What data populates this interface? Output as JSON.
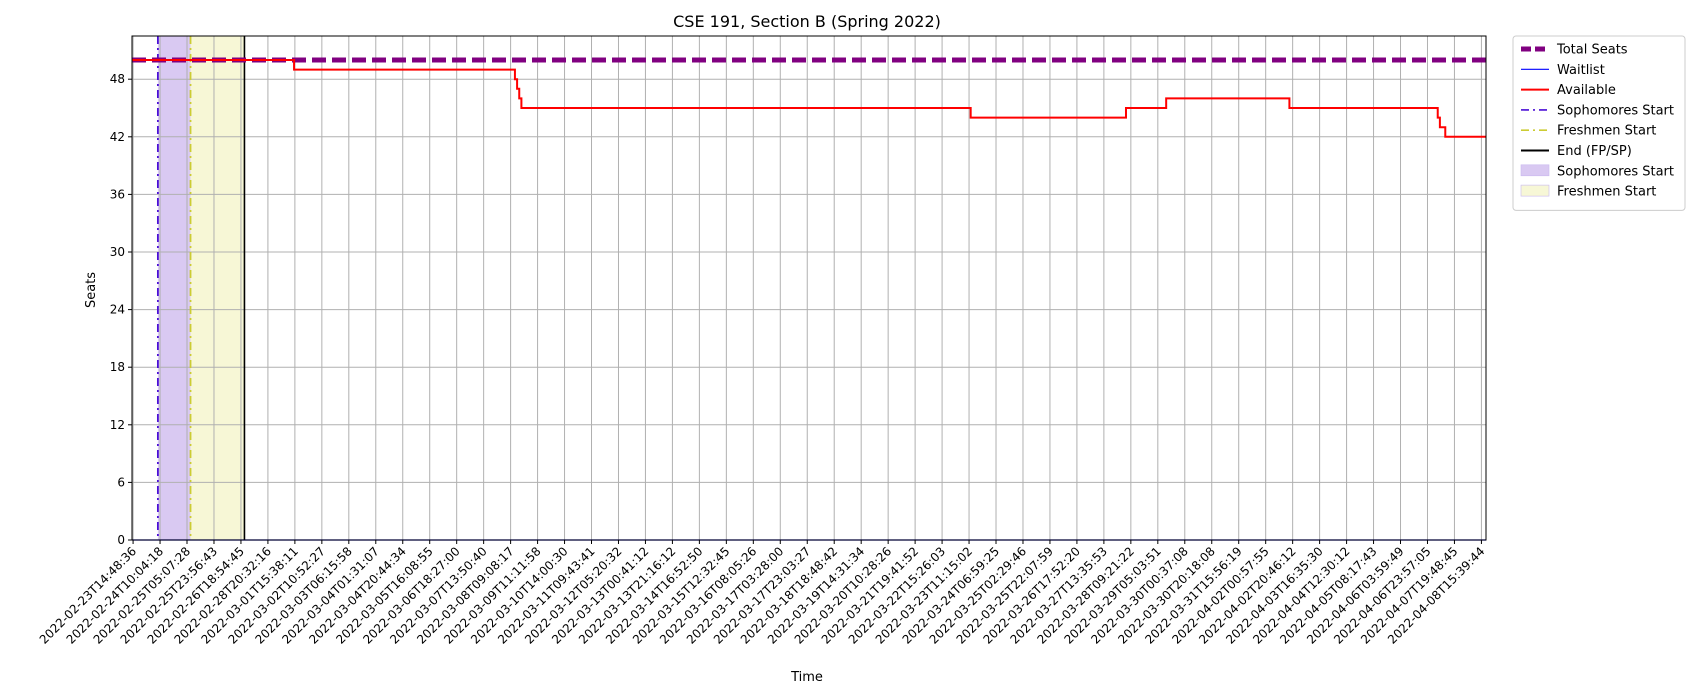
{
  "chart_data": {
    "type": "line",
    "title": "CSE 191, Section B (Spring 2022)",
    "xlabel": "Time",
    "ylabel": "Seats",
    "ylim": [
      0,
      52.5
    ],
    "y_ticks": [
      0,
      6,
      12,
      18,
      24,
      30,
      36,
      42,
      48
    ],
    "x_ticks": [
      "2022-02-23T14:48:36",
      "2022-02-24T10:04:18",
      "2022-02-25T05:07:28",
      "2022-02-25T23:56:43",
      "2022-02-26T18:54:45",
      "2022-02-28T20:32:16",
      "2022-03-01T15:38:11",
      "2022-03-02T10:52:27",
      "2022-03-03T06:15:58",
      "2022-03-04T01:31:07",
      "2022-03-04T20:44:34",
      "2022-03-05T16:08:55",
      "2022-03-06T18:27:00",
      "2022-03-07T13:50:40",
      "2022-03-08T09:08:17",
      "2022-03-09T11:11:58",
      "2022-03-10T14:00:30",
      "2022-03-11T09:43:41",
      "2022-03-12T05:20:32",
      "2022-03-13T00:41:12",
      "2022-03-13T21:16:12",
      "2022-03-14T16:52:50",
      "2022-03-15T12:32:45",
      "2022-03-16T08:05:26",
      "2022-03-17T03:28:00",
      "2022-03-17T23:03:27",
      "2022-03-18T18:48:42",
      "2022-03-19T14:31:34",
      "2022-03-20T10:28:26",
      "2022-03-21T19:41:52",
      "2022-03-22T15:26:03",
      "2022-03-23T11:15:02",
      "2022-03-24T06:59:25",
      "2022-03-25T02:29:46",
      "2022-03-25T22:07:59",
      "2022-03-26T17:52:20",
      "2022-03-27T13:35:53",
      "2022-03-28T09:21:22",
      "2022-03-29T05:03:51",
      "2022-03-30T00:37:08",
      "2022-03-30T20:18:08",
      "2022-03-31T15:56:19",
      "2022-04-02T00:57:55",
      "2022-04-02T20:46:12",
      "2022-04-03T16:35:30",
      "2022-04-04T12:30:12",
      "2022-04-05T08:17:43",
      "2022-04-06T03:59:49",
      "2022-04-06T23:57:05",
      "2022-04-07T19:48:45",
      "2022-04-08T15:39:44"
    ],
    "x_range_ticks": [
      -0.04,
      50.17
    ],
    "series": [
      {
        "name": "Total Seats",
        "color": "#800080",
        "style": "dashed-thick",
        "points": [
          [
            -0.04,
            50
          ],
          [
            50.17,
            50
          ]
        ]
      },
      {
        "name": "Waitlist",
        "color": "#0000ff",
        "style": "solid-thin",
        "points": [
          [
            -0.04,
            0
          ],
          [
            50.17,
            0
          ]
        ]
      },
      {
        "name": "Available",
        "color": "#ff0000",
        "style": "solid",
        "step": true,
        "points": [
          [
            -0.04,
            50
          ],
          [
            5.97,
            50
          ],
          [
            5.97,
            49
          ],
          [
            14.16,
            49
          ],
          [
            14.16,
            48
          ],
          [
            14.24,
            48
          ],
          [
            14.24,
            47
          ],
          [
            14.32,
            47
          ],
          [
            14.32,
            46
          ],
          [
            14.4,
            46
          ],
          [
            14.4,
            45
          ],
          [
            31.06,
            45
          ],
          [
            31.06,
            44
          ],
          [
            36.82,
            44
          ],
          [
            36.82,
            45
          ],
          [
            38.31,
            45
          ],
          [
            38.31,
            46
          ],
          [
            42.88,
            46
          ],
          [
            42.88,
            45
          ],
          [
            48.38,
            45
          ],
          [
            48.38,
            44
          ],
          [
            48.46,
            44
          ],
          [
            48.46,
            43
          ],
          [
            48.66,
            43
          ],
          [
            48.66,
            42
          ],
          [
            50.17,
            42
          ]
        ]
      }
    ],
    "vertical_lines": [
      {
        "name": "Sophomores Start",
        "x": 0.92,
        "color": "#4b0fd6",
        "style": "dashdot"
      },
      {
        "name": "Freshmen Start",
        "x": 2.13,
        "color": "#cccc33",
        "style": "dashdot"
      },
      {
        "name": "End (FP/SP)",
        "x": 4.13,
        "color": "#000000",
        "style": "solid"
      }
    ],
    "spans": [
      {
        "name": "Sophomores Start",
        "x0": 0.92,
        "x1": 2.13,
        "color": "#d9c9f2"
      },
      {
        "name": "Freshmen Start",
        "x0": 2.13,
        "x1": 4.13,
        "color": "#f7f7d6"
      }
    ],
    "grid": true,
    "legend": {
      "placement": "outside-top-right",
      "entries": [
        {
          "label": "Total Seats",
          "kind": "line",
          "color": "#800080",
          "style": "dashed-thick"
        },
        {
          "label": "Waitlist",
          "kind": "line",
          "color": "#0000ff",
          "style": "solid-thin"
        },
        {
          "label": "Available",
          "kind": "line",
          "color": "#ff0000",
          "style": "solid"
        },
        {
          "label": "Sophomores Start",
          "kind": "line",
          "color": "#4b0fd6",
          "style": "dashdot"
        },
        {
          "label": "Freshmen Start",
          "kind": "line",
          "color": "#cccc33",
          "style": "dashdot"
        },
        {
          "label": "End (FP/SP)",
          "kind": "line",
          "color": "#000000",
          "style": "solid"
        },
        {
          "label": "Sophomores Start",
          "kind": "patch",
          "color": "#d9c9f2"
        },
        {
          "label": "Freshmen Start",
          "kind": "patch",
          "color": "#f7f7d6"
        }
      ]
    }
  }
}
